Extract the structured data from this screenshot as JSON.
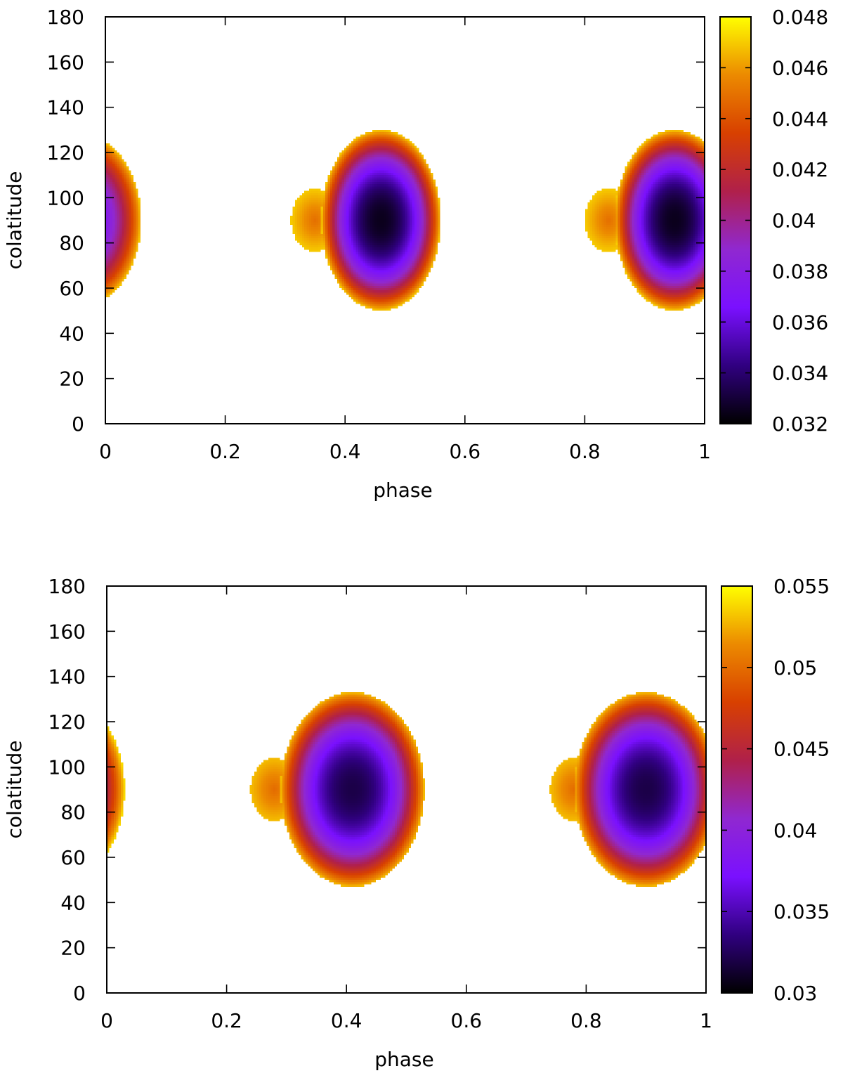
{
  "chart_data": [
    {
      "type": "heatmap",
      "title": "",
      "xlabel": "phase",
      "ylabel": "colatitude",
      "xlim": [
        0,
        1
      ],
      "ylim": [
        0,
        180
      ],
      "xticks": [
        "0",
        "0.2",
        "0.4",
        "0.6",
        "0.8",
        "1"
      ],
      "yticks": [
        "0",
        "20",
        "40",
        "60",
        "80",
        "100",
        "120",
        "140",
        "160",
        "180"
      ],
      "colorbar": {
        "range": [
          0.032,
          0.048
        ],
        "ticks": [
          "0.032",
          "0.034",
          "0.036",
          "0.038",
          "0.04",
          "0.042",
          "0.044",
          "0.046",
          "0.048"
        ],
        "palette": [
          "#000000",
          "#300080",
          "#7a10ff",
          "#9028d0",
          "#b0204a",
          "#d84000",
          "#ec8a00",
          "#ffff00"
        ]
      },
      "spots": [
        {
          "phase_center": 0.46,
          "colat_center": 90,
          "phase_halfwidth": 0.1,
          "colat_halfwidth": 40,
          "min_value": 0.0325,
          "edge_value": 0.047,
          "bump_phase": 0.35,
          "bump_colat": 90
        },
        {
          "phase_center": 0.95,
          "colat_center": 90,
          "phase_halfwidth": 0.1,
          "colat_halfwidth": 40,
          "min_value": 0.0325,
          "edge_value": 0.047,
          "bump_phase": 0.84,
          "bump_colat": 90
        },
        {
          "phase_center": -0.04,
          "colat_center": 90,
          "phase_halfwidth": 0.1,
          "colat_halfwidth": 38,
          "min_value": 0.036,
          "edge_value": 0.047,
          "bump_phase": null,
          "bump_colat": null
        }
      ]
    },
    {
      "type": "heatmap",
      "title": "",
      "xlabel": "phase",
      "ylabel": "colatitude",
      "xlim": [
        0,
        1
      ],
      "ylim": [
        0,
        180
      ],
      "xticks": [
        "0",
        "0.2",
        "0.4",
        "0.6",
        "0.8",
        "1"
      ],
      "yticks": [
        "0",
        "20",
        "40",
        "60",
        "80",
        "100",
        "120",
        "140",
        "160",
        "180"
      ],
      "colorbar": {
        "range": [
          0.03,
          0.055
        ],
        "ticks": [
          "0.03",
          "0.035",
          "0.04",
          "0.045",
          "0.05",
          "0.055"
        ],
        "palette": [
          "#000000",
          "#300080",
          "#7a10ff",
          "#9028d0",
          "#b0204a",
          "#d84000",
          "#ec8a00",
          "#ffff00"
        ]
      },
      "spots": [
        {
          "phase_center": 0.41,
          "colat_center": 90,
          "phase_halfwidth": 0.12,
          "colat_halfwidth": 43,
          "min_value": 0.032,
          "edge_value": 0.053,
          "bump_phase": 0.28,
          "bump_colat": 90
        },
        {
          "phase_center": 0.9,
          "colat_center": 90,
          "phase_halfwidth": 0.12,
          "colat_halfwidth": 43,
          "min_value": 0.032,
          "edge_value": 0.053,
          "bump_phase": 0.78,
          "bump_colat": 90
        },
        {
          "phase_center": -0.09,
          "colat_center": 90,
          "phase_halfwidth": 0.12,
          "colat_halfwidth": 43,
          "min_value": 0.034,
          "edge_value": 0.054,
          "bump_phase": null,
          "bump_colat": null
        }
      ]
    }
  ]
}
